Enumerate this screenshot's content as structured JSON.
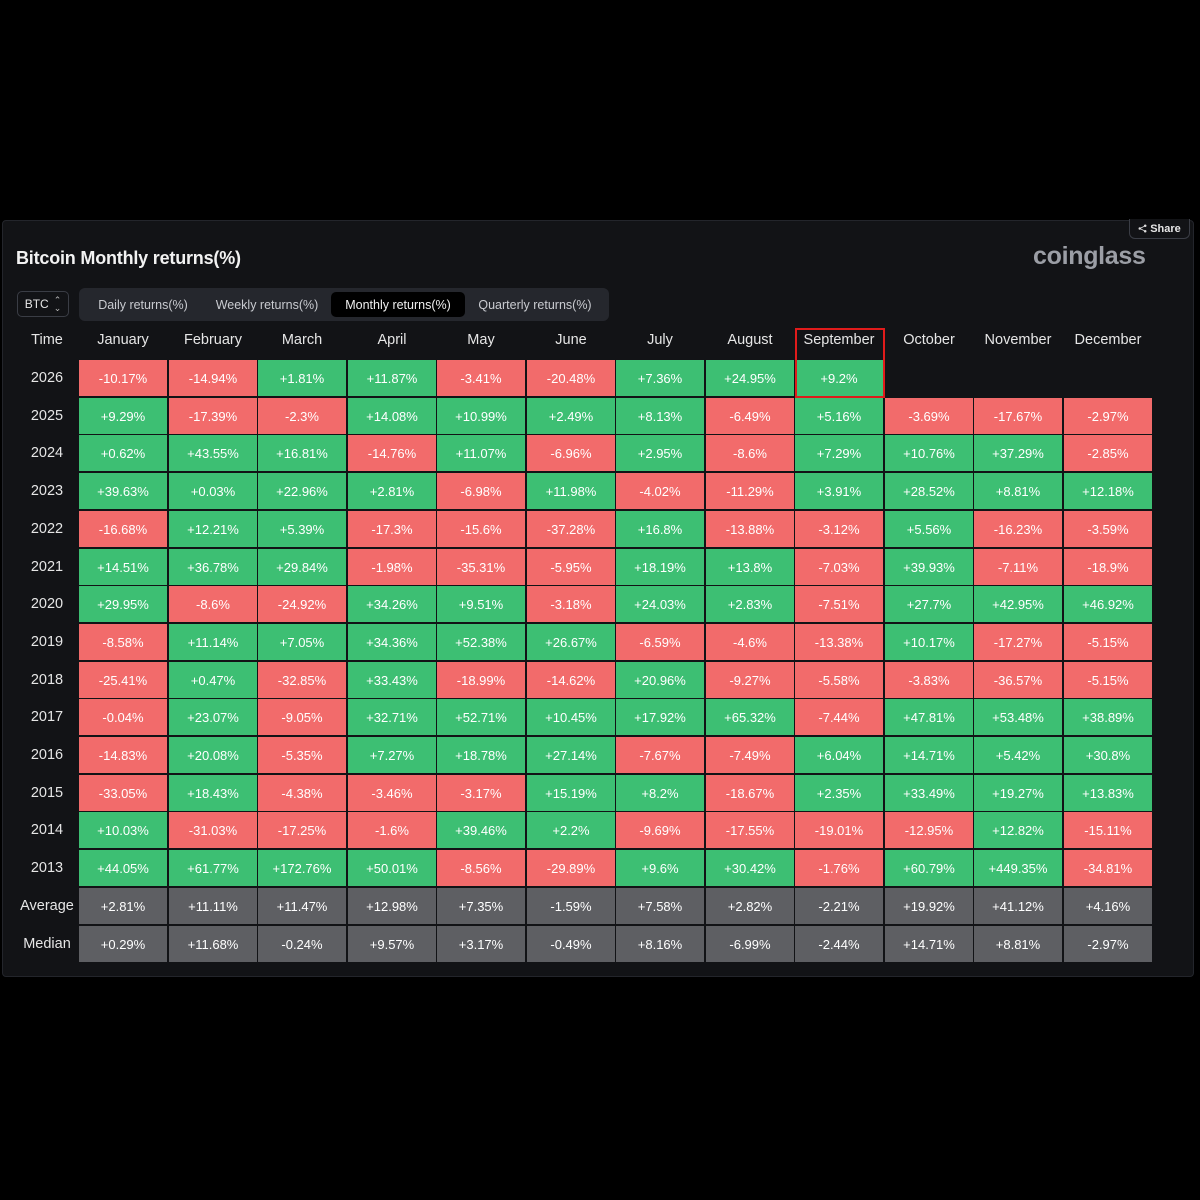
{
  "share_label": "Share",
  "title": "Bitcoin Monthly returns(%)",
  "logo": "coinglass",
  "coin_select": {
    "value": "BTC"
  },
  "tabs": [
    {
      "label": "Daily returns(%)",
      "active": false
    },
    {
      "label": "Weekly returns(%)",
      "active": false
    },
    {
      "label": "Monthly returns(%)",
      "active": true
    },
    {
      "label": "Quarterly returns(%)",
      "active": false
    }
  ],
  "colors": {
    "positive": "#3dbf73",
    "negative": "#f26b6b",
    "stat": "#5e5f63",
    "highlight": "#e01b1b"
  },
  "table": {
    "time_header": "Time",
    "months": [
      "January",
      "February",
      "March",
      "April",
      "May",
      "June",
      "July",
      "August",
      "September",
      "October",
      "November",
      "December"
    ],
    "rows": [
      {
        "year": "2026",
        "values": [
          "-10.17%",
          "-14.94%",
          "+1.81%",
          "+11.87%",
          "-3.41%",
          "-20.48%",
          "+7.36%",
          "+24.95%",
          "+9.2%"
        ]
      },
      {
        "year": "2025",
        "values": [
          "+9.29%",
          "-17.39%",
          "-2.3%",
          "+14.08%",
          "+10.99%",
          "+2.49%",
          "+8.13%",
          "-6.49%",
          "+5.16%",
          "-3.69%",
          "-17.67%",
          "-2.97%"
        ]
      },
      {
        "year": "2024",
        "values": [
          "+0.62%",
          "+43.55%",
          "+16.81%",
          "-14.76%",
          "+11.07%",
          "-6.96%",
          "+2.95%",
          "-8.6%",
          "+7.29%",
          "+10.76%",
          "+37.29%",
          "-2.85%"
        ]
      },
      {
        "year": "2023",
        "values": [
          "+39.63%",
          "+0.03%",
          "+22.96%",
          "+2.81%",
          "-6.98%",
          "+11.98%",
          "-4.02%",
          "-11.29%",
          "+3.91%",
          "+28.52%",
          "+8.81%",
          "+12.18%"
        ]
      },
      {
        "year": "2022",
        "values": [
          "-16.68%",
          "+12.21%",
          "+5.39%",
          "-17.3%",
          "-15.6%",
          "-37.28%",
          "+16.8%",
          "-13.88%",
          "-3.12%",
          "+5.56%",
          "-16.23%",
          "-3.59%"
        ]
      },
      {
        "year": "2021",
        "values": [
          "+14.51%",
          "+36.78%",
          "+29.84%",
          "-1.98%",
          "-35.31%",
          "-5.95%",
          "+18.19%",
          "+13.8%",
          "-7.03%",
          "+39.93%",
          "-7.11%",
          "-18.9%"
        ]
      },
      {
        "year": "2020",
        "values": [
          "+29.95%",
          "-8.6%",
          "-24.92%",
          "+34.26%",
          "+9.51%",
          "-3.18%",
          "+24.03%",
          "+2.83%",
          "-7.51%",
          "+27.7%",
          "+42.95%",
          "+46.92%"
        ]
      },
      {
        "year": "2019",
        "values": [
          "-8.58%",
          "+11.14%",
          "+7.05%",
          "+34.36%",
          "+52.38%",
          "+26.67%",
          "-6.59%",
          "-4.6%",
          "-13.38%",
          "+10.17%",
          "-17.27%",
          "-5.15%"
        ]
      },
      {
        "year": "2018",
        "values": [
          "-25.41%",
          "+0.47%",
          "-32.85%",
          "+33.43%",
          "-18.99%",
          "-14.62%",
          "+20.96%",
          "-9.27%",
          "-5.58%",
          "-3.83%",
          "-36.57%",
          "-5.15%"
        ]
      },
      {
        "year": "2017",
        "values": [
          "-0.04%",
          "+23.07%",
          "-9.05%",
          "+32.71%",
          "+52.71%",
          "+10.45%",
          "+17.92%",
          "+65.32%",
          "-7.44%",
          "+47.81%",
          "+53.48%",
          "+38.89%"
        ]
      },
      {
        "year": "2016",
        "values": [
          "-14.83%",
          "+20.08%",
          "-5.35%",
          "+7.27%",
          "+18.78%",
          "+27.14%",
          "-7.67%",
          "-7.49%",
          "+6.04%",
          "+14.71%",
          "+5.42%",
          "+30.8%"
        ]
      },
      {
        "year": "2015",
        "values": [
          "-33.05%",
          "+18.43%",
          "-4.38%",
          "-3.46%",
          "-3.17%",
          "+15.19%",
          "+8.2%",
          "-18.67%",
          "+2.35%",
          "+33.49%",
          "+19.27%",
          "+13.83%"
        ]
      },
      {
        "year": "2014",
        "values": [
          "+10.03%",
          "-31.03%",
          "-17.25%",
          "-1.6%",
          "+39.46%",
          "+2.2%",
          "-9.69%",
          "-17.55%",
          "-19.01%",
          "-12.95%",
          "+12.82%",
          "-15.11%"
        ]
      },
      {
        "year": "2013",
        "values": [
          "+44.05%",
          "+61.77%",
          "+172.76%",
          "+50.01%",
          "-8.56%",
          "-29.89%",
          "+9.6%",
          "+30.42%",
          "-1.76%",
          "+60.79%",
          "+449.35%",
          "-34.81%"
        ]
      }
    ],
    "stats": [
      {
        "label": "Average",
        "values": [
          "+2.81%",
          "+11.11%",
          "+11.47%",
          "+12.98%",
          "+7.35%",
          "-1.59%",
          "+7.58%",
          "+2.82%",
          "-2.21%",
          "+19.92%",
          "+41.12%",
          "+4.16%"
        ]
      },
      {
        "label": "Median",
        "values": [
          "+0.29%",
          "+11.68%",
          "-0.24%",
          "+9.57%",
          "+3.17%",
          "-0.49%",
          "+8.16%",
          "-6.99%",
          "-2.44%",
          "+14.71%",
          "+8.81%",
          "-2.97%"
        ]
      }
    ],
    "highlighted": {
      "year": "2026",
      "month": "September"
    }
  }
}
